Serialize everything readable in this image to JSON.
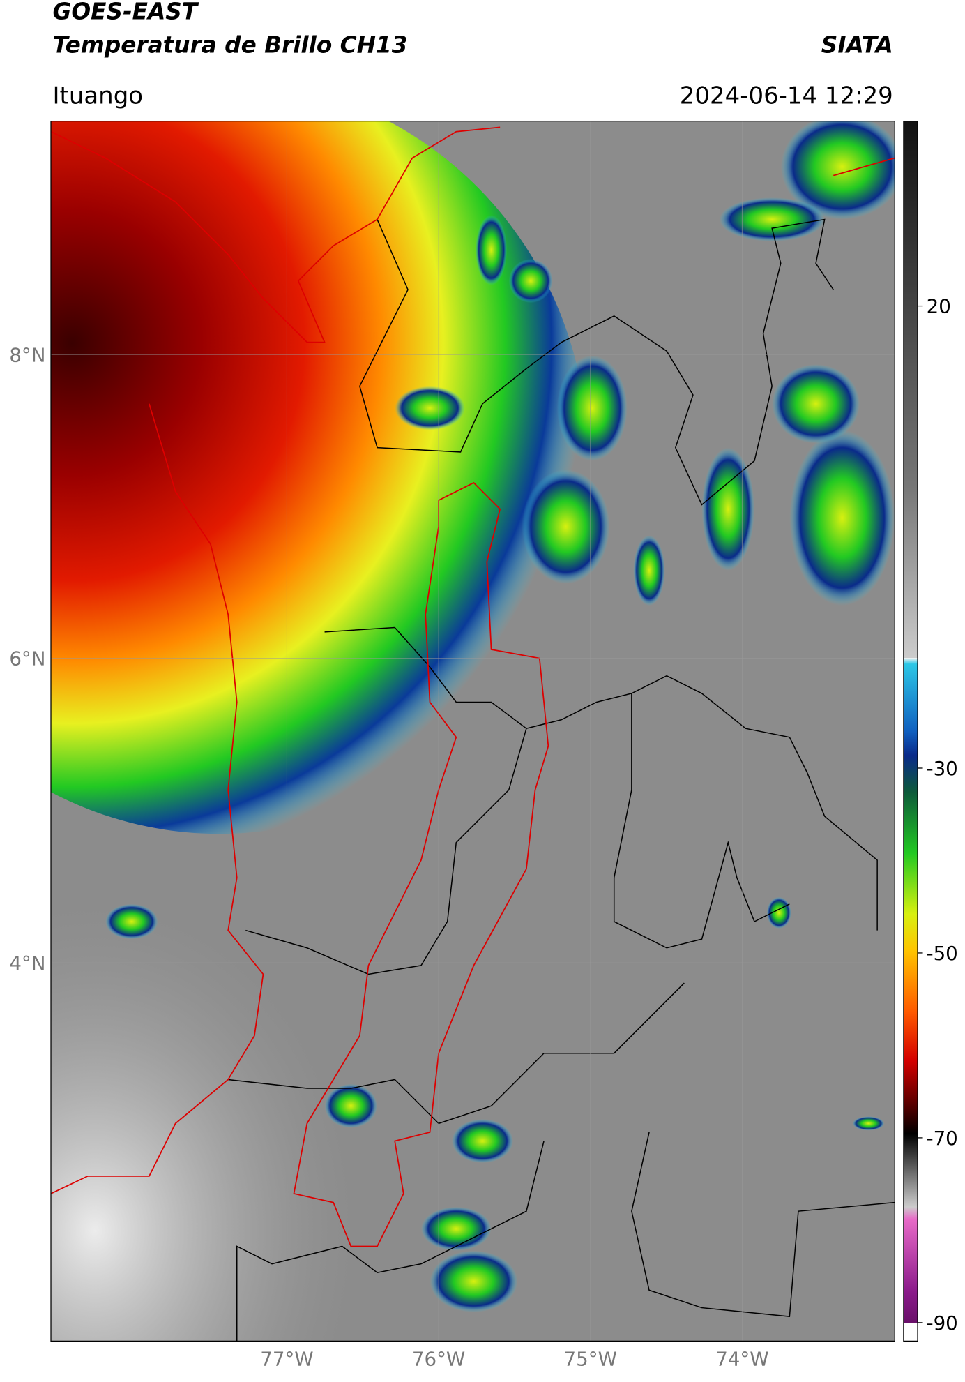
{
  "header": {
    "title_line1": "GOES-EAST",
    "title_line2": "Temperatura de Brillo CH13",
    "brand": "SIATA",
    "location": "Ituango",
    "datetime": "2024-06-14 12:29"
  },
  "map": {
    "lat_labels": [
      "8°N",
      "6°N",
      "4°N"
    ],
    "lon_labels": [
      "77°W",
      "76°W",
      "75°W",
      "74°W"
    ]
  },
  "colorbar": {
    "lim": [
      -92,
      40
    ],
    "ticks": [
      20,
      -30,
      -50,
      -70,
      -90
    ]
  }
}
